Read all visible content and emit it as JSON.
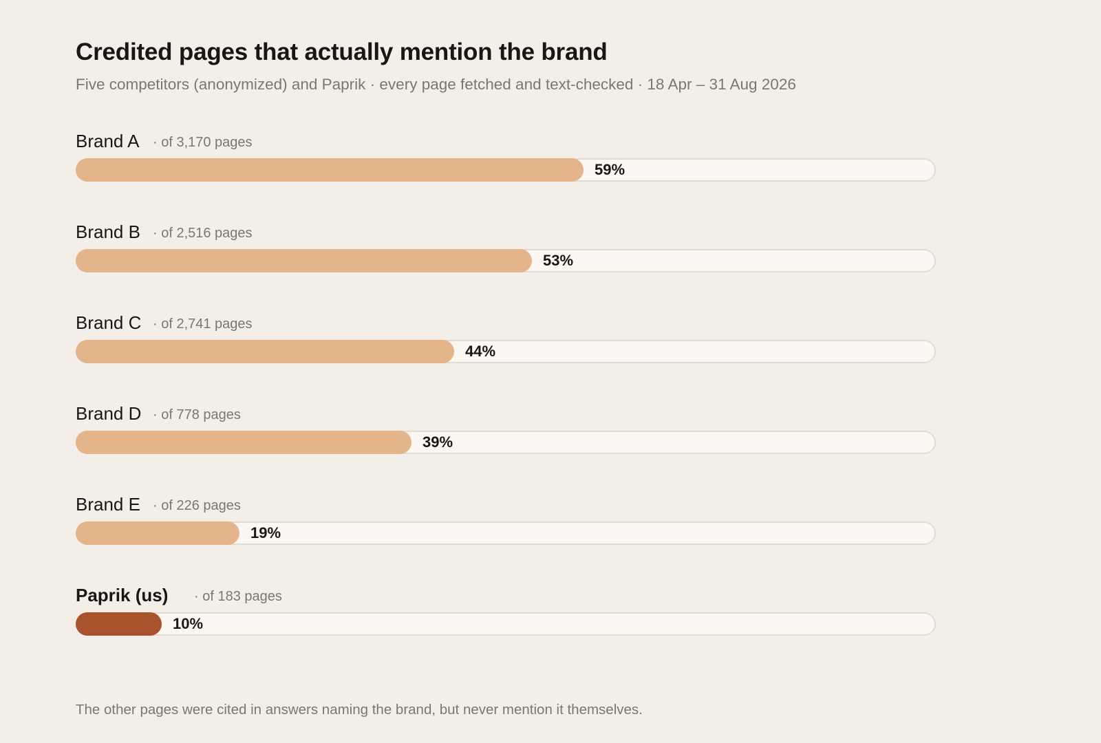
{
  "title": "Credited pages that actually mention the brand",
  "subtitle": "Five competitors (anonymized) and Paprik · every page fetched and text-checked · 18 Apr – 31 Aug 2026",
  "footnote": "The other pages were cited in answers naming the brand, but never mention it themselves.",
  "colors": {
    "background": "#f3eee8",
    "competitor_bar": "#e4b48b",
    "highlight_bar": "#a8532d",
    "track": "#fbf8f3"
  },
  "chart_data": {
    "type": "bar",
    "orientation": "horizontal",
    "categories": [
      "Brand A",
      "Brand B",
      "Brand C",
      "Brand D",
      "Brand E",
      "Paprik (us)"
    ],
    "page_totals": [
      "· of 3,170 pages",
      "· of 2,516 pages",
      "· of 2,741 pages",
      "· of 778 pages",
      "· of 226 pages",
      "· of 183 pages"
    ],
    "values": [
      59,
      53,
      44,
      39,
      19,
      10
    ],
    "value_labels": [
      "59%",
      "53%",
      "44%",
      "39%",
      "19%",
      "10%"
    ],
    "highlight": "Paprik (us)",
    "xlim": [
      0,
      100
    ],
    "grid": false,
    "legend": "none"
  }
}
